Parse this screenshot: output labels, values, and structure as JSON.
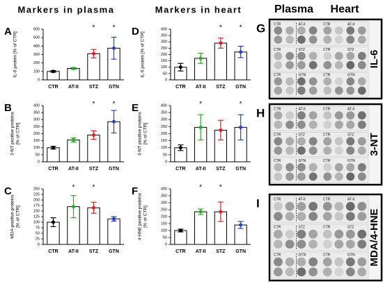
{
  "headers": [
    "Markers in plasma",
    "Markers in heart"
  ],
  "chart_data": [
    {
      "panel": "A",
      "type": "bar",
      "ylabel": [
        "IL-6 protein [% of CTR]"
      ],
      "categories": [
        "CTR",
        "AT-II",
        "STZ",
        "GTN"
      ],
      "values": [
        100,
        135,
        310,
        375
      ],
      "errors": [
        10,
        10,
        50,
        130
      ],
      "colors": [
        "#000000",
        "#22b022",
        "#e02020",
        "#2040d0"
      ],
      "ylim": [
        0,
        600
      ],
      "yticks": [
        0,
        100,
        200,
        300,
        400,
        500,
        600
      ],
      "annotations": [
        {
          "x": "STZ",
          "text": "*"
        },
        {
          "x": "GTN",
          "text": "*"
        }
      ]
    },
    {
      "panel": "B",
      "type": "bar",
      "ylabel": [
        "3-NT positive proteins",
        "[% of CTR]"
      ],
      "categories": [
        "CTR",
        "AT-II",
        "STZ",
        "GTN"
      ],
      "values": [
        100,
        155,
        190,
        285
      ],
      "errors": [
        10,
        15,
        30,
        80
      ],
      "colors": [
        "#000000",
        "#22b022",
        "#e02020",
        "#2040d0"
      ],
      "ylim": [
        0,
        400
      ],
      "yticks": [
        0,
        50,
        100,
        150,
        200,
        250,
        300,
        350,
        400
      ],
      "annotations": [
        {
          "x": "STZ",
          "text": "*"
        },
        {
          "x": "GTN",
          "text": "*"
        }
      ]
    },
    {
      "panel": "C",
      "type": "bar",
      "ylabel": [
        "MDA-positive proteins",
        "[% of CTR]"
      ],
      "categories": [
        "CTR",
        "AT-II",
        "STZ",
        "GTN"
      ],
      "values": [
        100,
        170,
        165,
        115
      ],
      "errors": [
        20,
        50,
        25,
        10
      ],
      "colors": [
        "#000000",
        "#22b022",
        "#e02020",
        "#2040d0"
      ],
      "ylim": [
        0,
        250
      ],
      "yticks": [
        0,
        25,
        50,
        75,
        100,
        125,
        150,
        175,
        200,
        225,
        250
      ],
      "annotations": [
        {
          "x": "AT-II",
          "text": "*"
        },
        {
          "x": "STZ",
          "text": "*"
        }
      ]
    },
    {
      "panel": "D",
      "type": "bar",
      "ylabel": [
        "IL-6 protein [% of CTR]"
      ],
      "categories": [
        "CTR",
        "AT-II",
        "STZ",
        "GTN"
      ],
      "values": [
        100,
        170,
        290,
        220
      ],
      "errors": [
        30,
        40,
        40,
        45
      ],
      "colors": [
        "#000000",
        "#22b022",
        "#e02020",
        "#2040d0"
      ],
      "ylim": [
        0,
        400
      ],
      "yticks": [
        0,
        50,
        100,
        150,
        200,
        250,
        300,
        350,
        400
      ],
      "annotations": [
        {
          "x": "STZ",
          "text": "*"
        },
        {
          "x": "GTN",
          "text": "*"
        }
      ]
    },
    {
      "panel": "E",
      "type": "bar",
      "ylabel": [
        "3-NT positive proteins",
        "[% of CTR]"
      ],
      "categories": [
        "CTR",
        "AT-II",
        "STZ",
        "GTN"
      ],
      "values": [
        100,
        245,
        225,
        245
      ],
      "errors": [
        20,
        90,
        70,
        90
      ],
      "colors": [
        "#000000",
        "#22b022",
        "#e02020",
        "#2040d0"
      ],
      "ylim": [
        0,
        400
      ],
      "yticks": [
        0,
        50,
        100,
        150,
        200,
        250,
        300,
        350,
        400
      ],
      "annotations": [
        {
          "x": "AT-II",
          "text": "*"
        },
        {
          "x": "GTN",
          "text": "*"
        }
      ]
    },
    {
      "panel": "F",
      "type": "bar",
      "ylabel": [
        "4-HNE positive proteins",
        "[% of CTR]"
      ],
      "categories": [
        "CTR",
        "AT-II",
        "STZ",
        "GTN"
      ],
      "values": [
        100,
        235,
        235,
        140
      ],
      "errors": [
        10,
        20,
        70,
        25
      ],
      "colors": [
        "#000000",
        "#22b022",
        "#e02020",
        "#2040d0"
      ],
      "ylim": [
        0,
        400
      ],
      "yticks": [
        0,
        50,
        100,
        150,
        200,
        250,
        300,
        350,
        400
      ],
      "annotations": [
        {
          "x": "AT-II",
          "text": "*"
        },
        {
          "x": "STZ",
          "text": "*"
        }
      ]
    }
  ],
  "blots": {
    "headers": [
      "Plasma",
      "Heart"
    ],
    "panels": [
      {
        "panel": "G",
        "label": "IL-6",
        "rows": [
          [
            "CTR",
            "AT-II",
            "CTR",
            "AT-II"
          ],
          [
            "CTR",
            "STZ",
            "CTR",
            "STZ"
          ],
          [
            "CTR",
            "GTN",
            "CTR",
            "GTN"
          ]
        ]
      },
      {
        "panel": "H",
        "label": "3-NT",
        "rows": [
          [
            "CTR",
            "AT-II",
            "CTR",
            "AT-II"
          ],
          [
            "CTR",
            "STZ",
            "CTR",
            "STZ"
          ],
          [
            "CTR",
            "GTN",
            "CTR",
            "GTN"
          ]
        ]
      },
      {
        "panel": "I",
        "label": "MDA/4-HNE",
        "rows": [
          [
            "CTR",
            "AT-II",
            "CTR",
            "AT-II"
          ],
          [
            "CTR",
            "STZ",
            "CTR",
            "STZ"
          ],
          [
            "CTR",
            "GTN",
            "CTR",
            "GTN"
          ]
        ]
      }
    ]
  }
}
